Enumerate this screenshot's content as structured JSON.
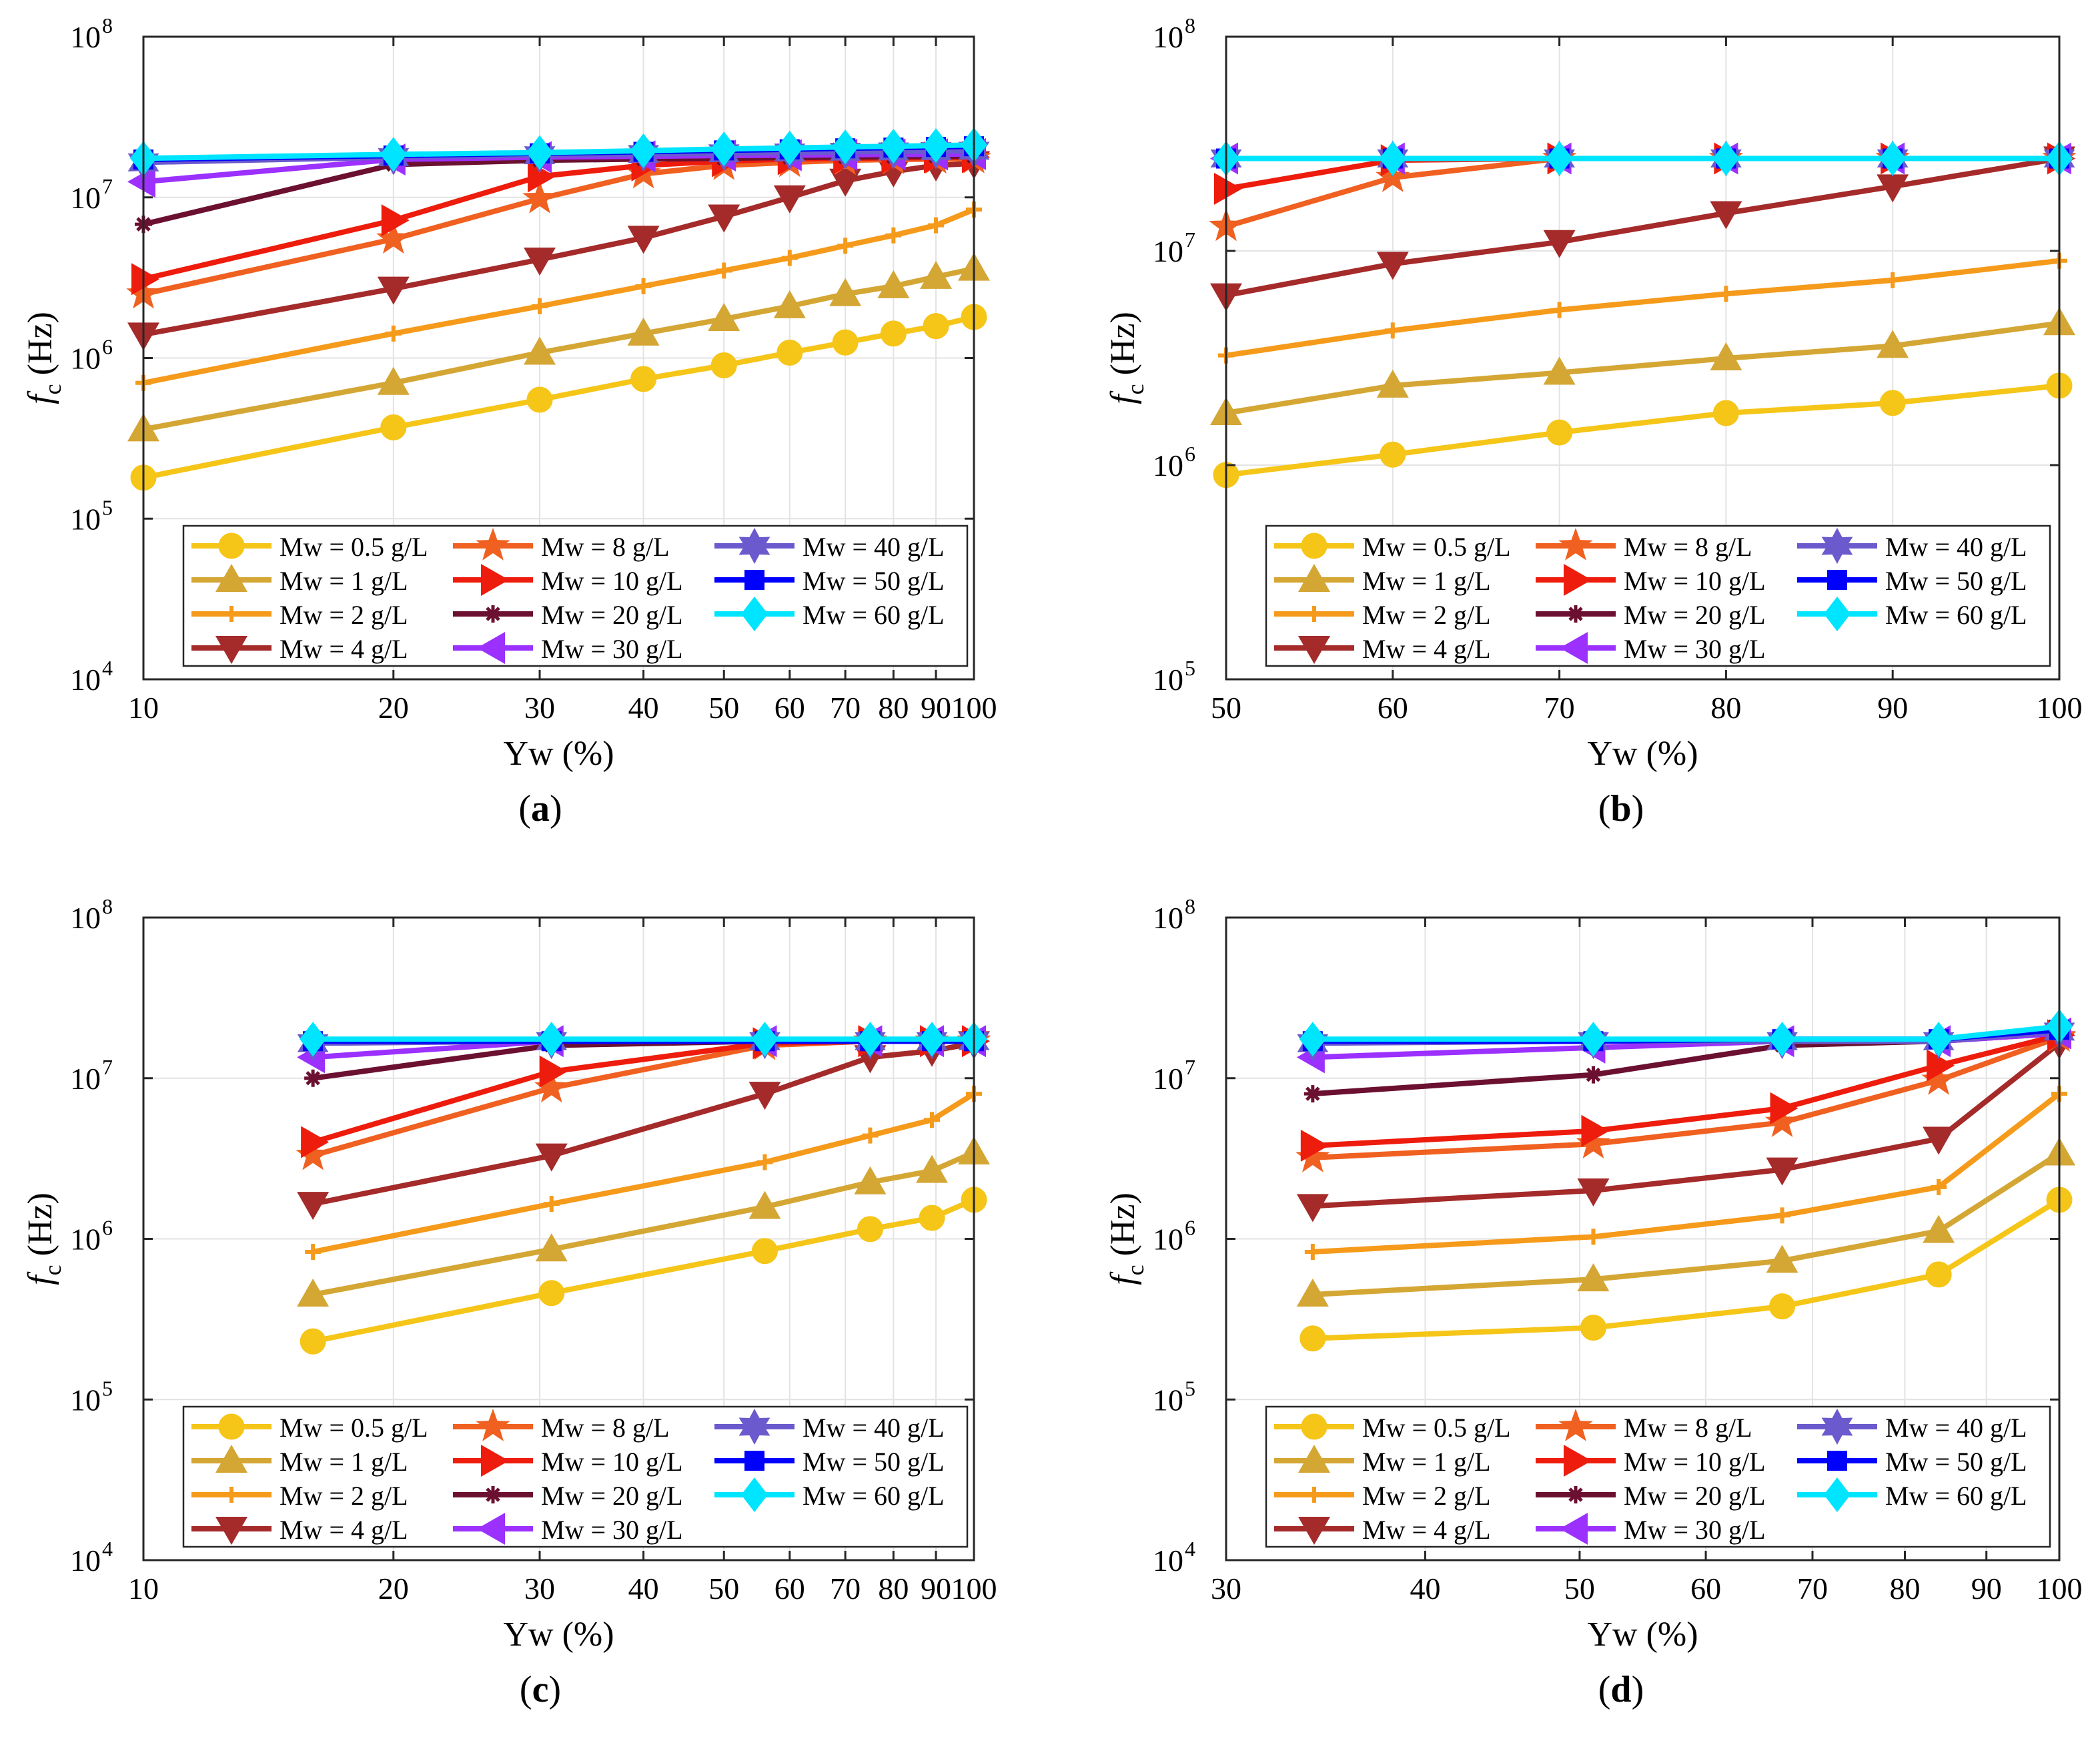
{
  "figure": {
    "ylabel_main": "f",
    "ylabel_sub": "c",
    "ylabel_unit": "(Hz)"
  },
  "legend": [
    {
      "label": "Mw = 0.5 g/L",
      "color": "#f5c518",
      "marker": "circle"
    },
    {
      "label": "Mw = 1 g/L",
      "color": "#d4a634",
      "marker": "triangle-up"
    },
    {
      "label": "Mw = 2 g/L",
      "color": "#f59a1a",
      "marker": "plus"
    },
    {
      "label": "Mw = 4 g/L",
      "color": "#a52a2a",
      "marker": "triangle-down"
    },
    {
      "label": "Mw = 8 g/L",
      "color": "#f06020",
      "marker": "star"
    },
    {
      "label": "Mw = 10 g/L",
      "color": "#ee1c0c",
      "marker": "triangle-right"
    },
    {
      "label": "Mw = 20 g/L",
      "color": "#6b1030",
      "marker": "asterisk"
    },
    {
      "label": "Mw = 30 g/L",
      "color": "#9b30ff",
      "marker": "triangle-left"
    },
    {
      "label": "Mw = 40 g/L",
      "color": "#6a5acd",
      "marker": "hexagram"
    },
    {
      "label": "Mw = 50 g/L",
      "color": "#0000ff",
      "marker": "square"
    },
    {
      "label": "Mw = 60 g/L",
      "color": "#00e5ff",
      "marker": "diamond"
    }
  ],
  "chart_data": [
    {
      "type": "line",
      "caption_letter": "a",
      "xscale": "log",
      "yscale": "log",
      "xlabel": "Yw (%)",
      "xlim": [
        10,
        100
      ],
      "ylim": [
        10000,
        100000000
      ],
      "xticks": [
        10,
        20,
        30,
        40,
        50,
        60,
        70,
        80,
        90,
        100
      ],
      "xtick_labels": [
        "10",
        "20",
        "30",
        "40",
        "50",
        "60",
        "70",
        "80",
        "90",
        "100"
      ],
      "yticks": [
        10000,
        100000,
        1000000,
        10000000,
        100000000
      ],
      "ytick_exponents": [
        "4",
        "5",
        "6",
        "7",
        "8"
      ],
      "x": [
        10,
        20,
        30,
        40,
        50,
        60,
        70,
        80,
        90,
        100
      ],
      "series": [
        {
          "name": "Mw = 0.5 g/L",
          "values": [
            180000,
            370000,
            550000,
            740000,
            900000,
            1080000,
            1250000,
            1420000,
            1580000,
            1800000
          ]
        },
        {
          "name": "Mw = 1 g/L",
          "values": [
            360000,
            700000,
            1080000,
            1420000,
            1750000,
            2100000,
            2500000,
            2800000,
            3200000,
            3600000
          ]
        },
        {
          "name": "Mw = 2 g/L",
          "values": [
            700000,
            1420000,
            2100000,
            2800000,
            3500000,
            4200000,
            5000000,
            5800000,
            6700000,
            8400000
          ]
        },
        {
          "name": "Mw = 4 g/L",
          "values": [
            1400000,
            2700000,
            4100000,
            5600000,
            7600000,
            10000000,
            12700000,
            14500000,
            15800000,
            16300000
          ]
        },
        {
          "name": "Mw = 8 g/L",
          "values": [
            2500000,
            5500000,
            9800000,
            14000000,
            15800000,
            16500000,
            17000000,
            17200000,
            17300000,
            17400000
          ]
        },
        {
          "name": "Mw = 10 g/L",
          "values": [
            3100000,
            7200000,
            13500000,
            15800000,
            16800000,
            17300000,
            17500000,
            17600000,
            17700000,
            17800000
          ]
        },
        {
          "name": "Mw = 20 g/L",
          "values": [
            6800000,
            16000000,
            17000000,
            17300000,
            17500000,
            17700000,
            17800000,
            17900000,
            18000000,
            18000000
          ]
        },
        {
          "name": "Mw = 30 g/L",
          "values": [
            12500000,
            17200000,
            17800000,
            18000000,
            18200000,
            18300000,
            18400000,
            18500000,
            18500000,
            18600000
          ]
        },
        {
          "name": "Mw = 40 g/L",
          "values": [
            16500000,
            17800000,
            18300000,
            18600000,
            18800000,
            19000000,
            19200000,
            19300000,
            19400000,
            19500000
          ]
        },
        {
          "name": "Mw = 50 g/L",
          "values": [
            17200000,
            18200000,
            18800000,
            19200000,
            19600000,
            19900000,
            20200000,
            20400000,
            20600000,
            20800000
          ]
        },
        {
          "name": "Mw = 60 g/L",
          "values": [
            17500000,
            18500000,
            19000000,
            19500000,
            20000000,
            20300000,
            20600000,
            20800000,
            21000000,
            21200000
          ]
        }
      ]
    },
    {
      "type": "line",
      "caption_letter": "b",
      "xscale": "linear",
      "yscale": "log",
      "xlabel": "Yw (%)",
      "xlim": [
        50,
        100
      ],
      "ylim": [
        100000,
        100000000
      ],
      "xticks": [
        50,
        60,
        70,
        80,
        90,
        100
      ],
      "xtick_labels": [
        "50",
        "60",
        "70",
        "80",
        "90",
        "100"
      ],
      "yticks": [
        100000,
        1000000,
        10000000,
        100000000
      ],
      "ytick_exponents": [
        "5",
        "6",
        "7",
        "8"
      ],
      "x": [
        50,
        60,
        70,
        80,
        90,
        100
      ],
      "series": [
        {
          "name": "Mw = 0.5 g/L",
          "values": [
            900000,
            1120000,
            1420000,
            1750000,
            1950000,
            2350000
          ]
        },
        {
          "name": "Mw = 1 g/L",
          "values": [
            1750000,
            2350000,
            2700000,
            3150000,
            3600000,
            4600000
          ]
        },
        {
          "name": "Mw = 2 g/L",
          "values": [
            3250000,
            4250000,
            5300000,
            6300000,
            7300000,
            9000000
          ]
        },
        {
          "name": "Mw = 4 g/L",
          "values": [
            6200000,
            8700000,
            11000000,
            15000000,
            20000000,
            27000000
          ]
        },
        {
          "name": "Mw = 8 g/L",
          "values": [
            13000000,
            22000000,
            27000000,
            27000000,
            27000000,
            27000000
          ]
        },
        {
          "name": "Mw = 10 g/L",
          "values": [
            19500000,
            26500000,
            27000000,
            27000000,
            27000000,
            27000000
          ]
        },
        {
          "name": "Mw = 20 g/L",
          "values": [
            27000000,
            27000000,
            27000000,
            27000000,
            27000000,
            27000000
          ]
        },
        {
          "name": "Mw = 30 g/L",
          "values": [
            27000000,
            27000000,
            27000000,
            27000000,
            27000000,
            27000000
          ]
        },
        {
          "name": "Mw = 40 g/L",
          "values": [
            27000000,
            27000000,
            27000000,
            27000000,
            27000000,
            27000000
          ]
        },
        {
          "name": "Mw = 50 g/L",
          "values": [
            27000000,
            27000000,
            27000000,
            27000000,
            27000000,
            27000000
          ]
        },
        {
          "name": "Mw = 60 g/L",
          "values": [
            27000000,
            27000000,
            27000000,
            27000000,
            27000000,
            27000000
          ]
        }
      ]
    },
    {
      "type": "line",
      "caption_letter": "c",
      "xscale": "log",
      "yscale": "log",
      "xlabel": "Yw (%)",
      "xlim": [
        10,
        100
      ],
      "ylim": [
        10000,
        100000000
      ],
      "xticks": [
        10,
        20,
        30,
        40,
        50,
        60,
        70,
        80,
        90,
        100
      ],
      "xtick_labels": [
        "10",
        "20",
        "30",
        "40",
        "50",
        "60",
        "70",
        "80",
        "90",
        "100"
      ],
      "yticks": [
        10000,
        100000,
        1000000,
        10000000,
        100000000
      ],
      "ytick_exponents": [
        "4",
        "5",
        "6",
        "7",
        "8"
      ],
      "x": [
        16,
        31,
        56,
        75,
        89,
        100
      ],
      "series": [
        {
          "name": "Mw = 0.5 g/L",
          "values": [
            230000,
            460000,
            840000,
            1150000,
            1350000,
            1750000
          ]
        },
        {
          "name": "Mw = 1 g/L",
          "values": [
            450000,
            860000,
            1580000,
            2250000,
            2650000,
            3450000
          ]
        },
        {
          "name": "Mw = 2 g/L",
          "values": [
            830000,
            1650000,
            3000000,
            4400000,
            5500000,
            8000000
          ]
        },
        {
          "name": "Mw = 4 g/L",
          "values": [
            1650000,
            3300000,
            8000000,
            13500000,
            14800000,
            16500000
          ]
        },
        {
          "name": "Mw = 8 g/L",
          "values": [
            3300000,
            8700000,
            16000000,
            17000000,
            17000000,
            17000000
          ]
        },
        {
          "name": "Mw = 10 g/L",
          "values": [
            4000000,
            11000000,
            16500000,
            17000000,
            17000000,
            17000000
          ]
        },
        {
          "name": "Mw = 20 g/L",
          "values": [
            10000000,
            16000000,
            17000000,
            17000000,
            17000000,
            17000000
          ]
        },
        {
          "name": "Mw = 30 g/L",
          "values": [
            13500000,
            17000000,
            17000000,
            17000000,
            17000000,
            17000000
          ]
        },
        {
          "name": "Mw = 40 g/L",
          "values": [
            16500000,
            17000000,
            17000000,
            17000000,
            17000000,
            17000000
          ]
        },
        {
          "name": "Mw = 50 g/L",
          "values": [
            17000000,
            17000000,
            17000000,
            17000000,
            17000000,
            17000000
          ]
        },
        {
          "name": "Mw = 60 g/L",
          "values": [
            17500000,
            17500000,
            17500000,
            17500000,
            17500000,
            17500000
          ]
        }
      ]
    },
    {
      "type": "line",
      "caption_letter": "d",
      "xscale": "log",
      "yscale": "log",
      "xlabel": "Yw (%)",
      "xlim": [
        30,
        100
      ],
      "ylim": [
        10000,
        100000000
      ],
      "xticks": [
        30,
        40,
        50,
        60,
        70,
        80,
        90,
        100
      ],
      "xtick_labels": [
        "30",
        "40",
        "50",
        "60",
        "70",
        "80",
        "90",
        "100"
      ],
      "yticks": [
        10000,
        100000,
        1000000,
        10000000,
        100000000
      ],
      "ytick_exponents": [
        "4",
        "5",
        "6",
        "7",
        "8"
      ],
      "x": [
        34,
        51,
        67,
        84,
        100
      ],
      "series": [
        {
          "name": "Mw = 0.5 g/L",
          "values": [
            240000,
            280000,
            380000,
            600000,
            1750000
          ]
        },
        {
          "name": "Mw = 1 g/L",
          "values": [
            450000,
            560000,
            730000,
            1120000,
            3400000
          ]
        },
        {
          "name": "Mw = 2 g/L",
          "values": [
            830000,
            1030000,
            1400000,
            2100000,
            8000000
          ]
        },
        {
          "name": "Mw = 4 g/L",
          "values": [
            1600000,
            2000000,
            2700000,
            4200000,
            16500000
          ]
        },
        {
          "name": "Mw = 8 g/L",
          "values": [
            3200000,
            3900000,
            5300000,
            9700000,
            18000000
          ]
        },
        {
          "name": "Mw = 10 g/L",
          "values": [
            3800000,
            4700000,
            6500000,
            12000000,
            18500000
          ]
        },
        {
          "name": "Mw = 20 g/L",
          "values": [
            8000000,
            10500000,
            16000000,
            17000000,
            19000000
          ]
        },
        {
          "name": "Mw = 30 g/L",
          "values": [
            13500000,
            15500000,
            17000000,
            17000000,
            19000000
          ]
        },
        {
          "name": "Mw = 40 g/L",
          "values": [
            16500000,
            17000000,
            17000000,
            17000000,
            19500000
          ]
        },
        {
          "name": "Mw = 50 g/L",
          "values": [
            17000000,
            17000000,
            17500000,
            17500000,
            20000000
          ]
        },
        {
          "name": "Mw = 60 g/L",
          "values": [
            17500000,
            17500000,
            17500000,
            17500000,
            21000000
          ]
        }
      ]
    }
  ]
}
